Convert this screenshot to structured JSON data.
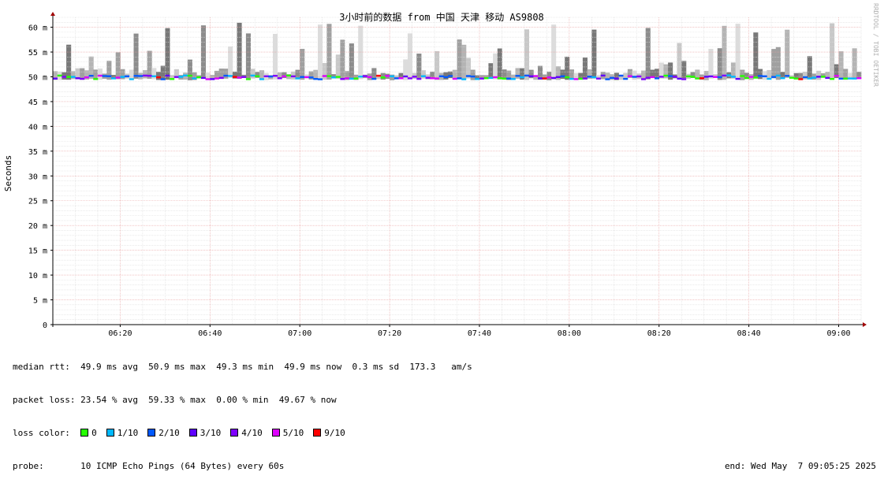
{
  "chart_data": {
    "type": "line",
    "title": "3小时前的数据 from 中国 天津 移动 AS9808",
    "ylabel": "Seconds",
    "ylim": [
      0,
      62
    ],
    "yticks": [
      {
        "v": 0,
        "label": "0"
      },
      {
        "v": 5,
        "label": "5 m"
      },
      {
        "v": 10,
        "label": "10 m"
      },
      {
        "v": 15,
        "label": "15 m"
      },
      {
        "v": 20,
        "label": "20 m"
      },
      {
        "v": 25,
        "label": "25 m"
      },
      {
        "v": 30,
        "label": "30 m"
      },
      {
        "v": 35,
        "label": "35 m"
      },
      {
        "v": 40,
        "label": "40 m"
      },
      {
        "v": 45,
        "label": "45 m"
      },
      {
        "v": 50,
        "label": "50 m"
      },
      {
        "v": 55,
        "label": "55 m"
      },
      {
        "v": 60,
        "label": "60 m"
      }
    ],
    "xrange": [
      "06:05",
      "09:05"
    ],
    "xticks": [
      "06:20",
      "06:40",
      "07:00",
      "07:20",
      "07:40",
      "08:00",
      "08:20",
      "08:40",
      "09:00"
    ],
    "grid": true,
    "watermark": "RRDTOOL / TOBI OETIKER",
    "series_median_ms_approx": 49.9,
    "smoke_max_ms": 61
  },
  "stats": {
    "median_rtt": "median rtt:  49.9 ms avg  50.9 ms max  49.3 ms min  49.9 ms now  0.3 ms sd  173.3   am/s",
    "packet_loss": "packet loss: 23.54 % avg  59.33 % max  0.00 % min  49.67 % now",
    "loss_color_label": "loss color:",
    "probe": "probe:       10 ICMP Echo Pings (64 Bytes) every 60s",
    "end": "end: Wed May  7 09:05:25 2025"
  },
  "loss_legend": [
    {
      "label": "0",
      "color": "#26ff00"
    },
    {
      "label": "1/10",
      "color": "#00b8ff"
    },
    {
      "label": "2/10",
      "color": "#0059ff"
    },
    {
      "label": "3/10",
      "color": "#5e00ff"
    },
    {
      "label": "4/10",
      "color": "#7e00ff"
    },
    {
      "label": "5/10",
      "color": "#dd00ff"
    },
    {
      "label": "9/10",
      "color": "#ff0000"
    }
  ]
}
